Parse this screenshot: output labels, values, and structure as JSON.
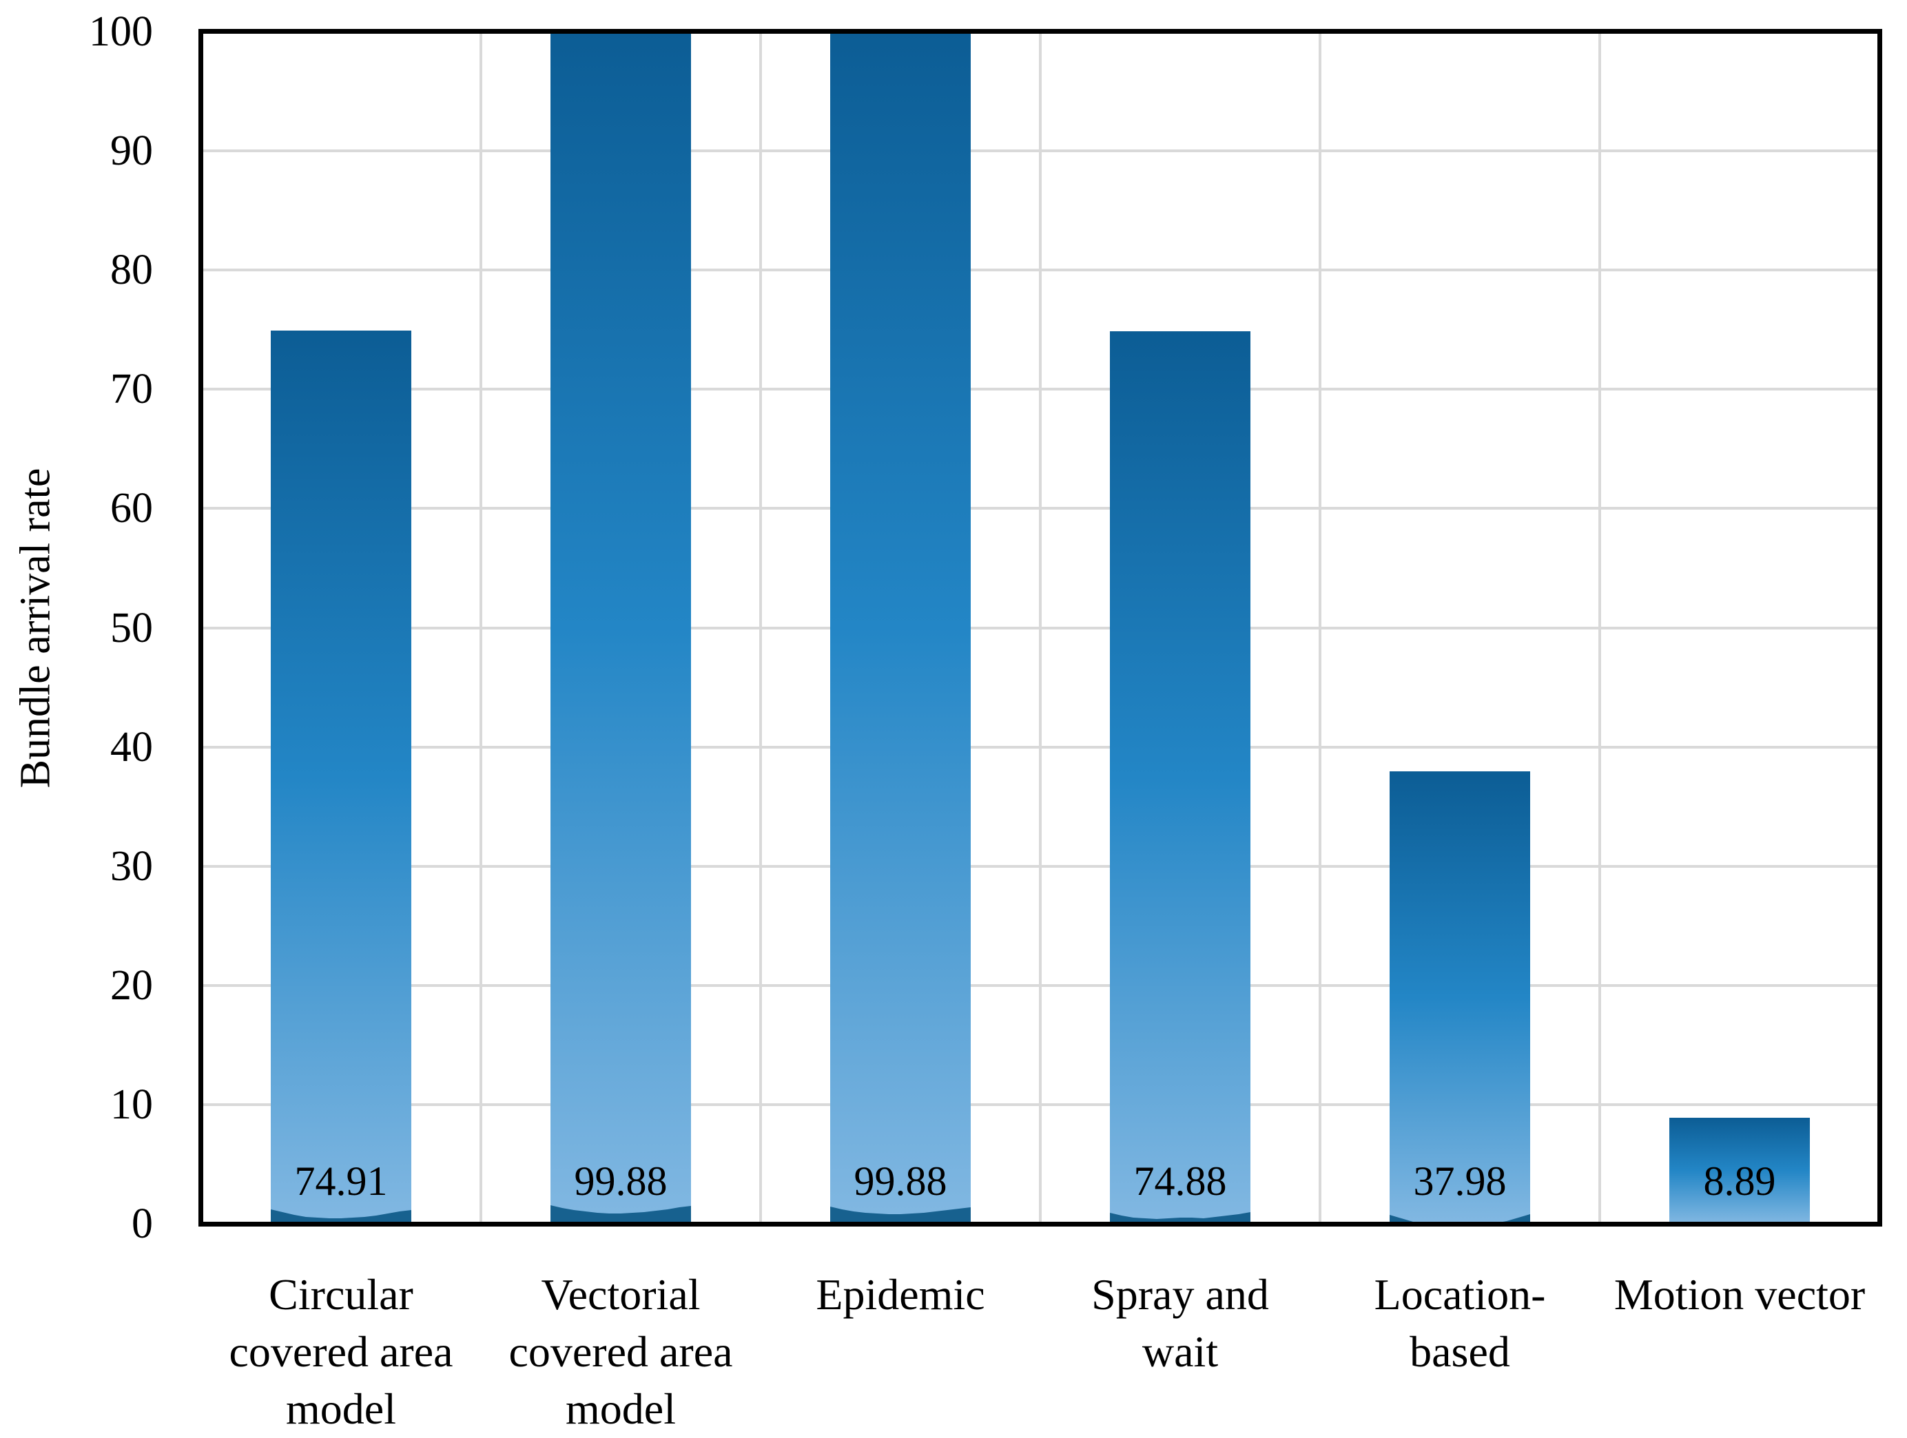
{
  "chart_data": {
    "type": "bar",
    "title": "",
    "xlabel": "",
    "ylabel": "Bundle arrival rate",
    "ylim": [
      0,
      100
    ],
    "yticks": [
      0,
      10,
      20,
      30,
      40,
      50,
      60,
      70,
      80,
      90,
      100
    ],
    "grid": "horizontal and vertical major gridlines, light gray, inside black plot frame",
    "legend_position": "none",
    "categories": [
      [
        "Circular",
        "covered area",
        "model"
      ],
      [
        "Vectorial",
        "covered area",
        "model"
      ],
      [
        "Epidemic"
      ],
      [
        "Spray and",
        "wait"
      ],
      [
        "Location-",
        "based"
      ],
      [
        "Motion vector"
      ]
    ],
    "values": [
      74.91,
      99.88,
      99.88,
      74.88,
      37.98,
      8.89
    ],
    "data_labels": [
      "74.91",
      "99.88",
      "99.88",
      "74.88",
      "37.98",
      "8.89"
    ],
    "data_label_position": "inside-base",
    "colors": {
      "bar_gradient_top": "#0c5d95",
      "bar_gradient_mid": "#2386c6",
      "bar_gradient_bottom": "#82b8e2",
      "bar_base_wave": "#17618f",
      "gridline": "#d9d9d9",
      "axis_frame": "#000000",
      "text": "#000000",
      "background": "#ffffff"
    }
  }
}
